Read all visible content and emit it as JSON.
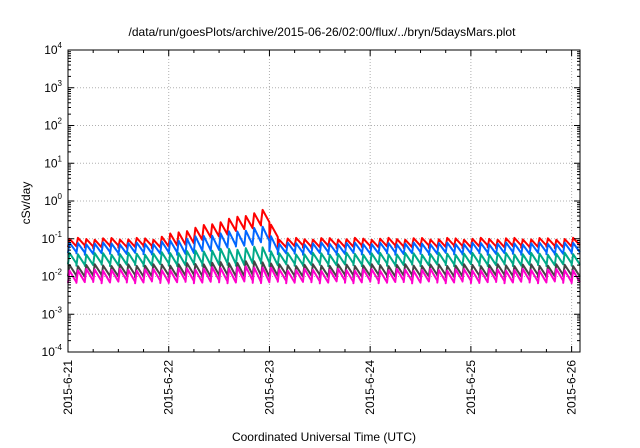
{
  "chart_data": {
    "type": "line",
    "title": "/data/run/goesPlots/archive/2015-06-26/02:00/flux/../bryn/5daysMars.plot",
    "xlabel": "Coordinated Universal Time (UTC)",
    "ylabel": "cSv/day",
    "yscale": "log",
    "ylim": [
      0.0001,
      10000
    ],
    "xlim": [
      "2015-06-21 00:00",
      "2015-06-26 02:00"
    ],
    "grid": true,
    "x_ticks": [
      "2015-6-21",
      "2015-6-22",
      "2015-6-23",
      "2015-6-24",
      "2015-6-25",
      "2015-6-26"
    ],
    "y_ticks": [
      {
        "base": "10",
        "exp": "4",
        "value": 10000
      },
      {
        "base": "10",
        "exp": "3",
        "value": 1000
      },
      {
        "base": "10",
        "exp": "2",
        "value": 100
      },
      {
        "base": "10",
        "exp": "1",
        "value": 10
      },
      {
        "base": "10",
        "exp": "0",
        "value": 1
      },
      {
        "base": "10",
        "exp": "-1",
        "value": 0.1
      },
      {
        "base": "10",
        "exp": "-2",
        "value": 0.01
      },
      {
        "base": "10",
        "exp": "-3",
        "value": 0.001
      },
      {
        "base": "10",
        "exp": "-4",
        "value": 0.0001
      }
    ],
    "sawtooth_period_hours": 2,
    "series": [
      {
        "color": "#ff0000",
        "base_low": 0.06,
        "base_high": 0.1,
        "enhanced_peak": 0.55
      },
      {
        "color": "#0066ff",
        "base_low": 0.04,
        "base_high": 0.075,
        "enhanced_peak": 0.2
      },
      {
        "color": "#00aa88",
        "base_low": 0.02,
        "base_high": 0.04,
        "enhanced_peak": 0.06
      },
      {
        "color": "#444444",
        "base_low": 0.01,
        "base_high": 0.02,
        "enhanced_peak": 0.025
      },
      {
        "color": "#ff00cc",
        "base_low": 0.007,
        "base_high": 0.015,
        "enhanced_peak": 0.018
      }
    ],
    "enhancement": {
      "start": "2015-06-21 20:00",
      "peak": "2015-06-22 22:00",
      "end": "2015-06-23 02:00"
    }
  }
}
